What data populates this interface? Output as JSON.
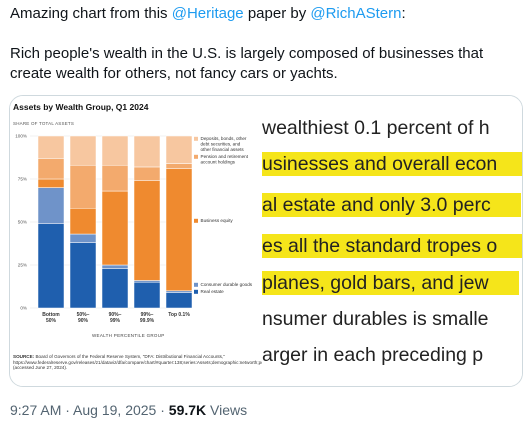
{
  "tweet": {
    "intro_prefix": "Amazing chart from this ",
    "mention_heritage": "@Heritage",
    "intro_middle": " paper by ",
    "mention_author": "@RichAStern",
    "intro_suffix": ":",
    "body": "Rich people's wealth in the U.S. is largely composed of businesses that create wealth for others, not fancy cars or yachts."
  },
  "media": {
    "zoom_lines": [
      " wealthiest 0.1 percent of h",
      "usinesses and overall econ",
      "al estate and only 3.0 perc",
      "es all the standard tropes o",
      "planes, gold bars, and jew",
      "nsumer durables is smalle",
      "arger in each preceding p"
    ]
  },
  "chart_data": {
    "type": "bar",
    "stacked": true,
    "title": "Assets by Wealth Group, Q1 2024",
    "ylabel": "SHARE OF TOTAL ASSETS",
    "xlabel": "WEALTH PERCENTILE GROUP",
    "y_ticks": [
      "0%",
      "25%",
      "50%",
      "75%",
      "100%"
    ],
    "ylim": [
      0,
      100
    ],
    "categories": [
      [
        "Bottom",
        "50%"
      ],
      [
        "50%–",
        "90%"
      ],
      [
        "90%–",
        "99%"
      ],
      [
        "99%–",
        "99.9%"
      ],
      [
        "Top 0.1%"
      ]
    ],
    "series": [
      {
        "name": "Real estate",
        "color": "#1f5fae",
        "values": [
          49,
          38,
          23,
          15,
          9
        ]
      },
      {
        "name": "Consumer durable goods",
        "color": "#6f93c9",
        "values": [
          21,
          5,
          2,
          1,
          1
        ]
      },
      {
        "name": "Business equity",
        "color": "#ef8a2f",
        "values": [
          5,
          15,
          43,
          58,
          71
        ]
      },
      {
        "name": "Pension and retirement account holdings",
        "color": "#f3aa6d",
        "values": [
          12,
          25,
          15,
          8,
          3
        ]
      },
      {
        "name": "Deposits, bonds, other debt securities, and other financial assets",
        "color": "#f7c7a0",
        "values": [
          13,
          17,
          17,
          18,
          16
        ]
      }
    ],
    "legend": [
      {
        "label": "Deposits, bonds, other debt securities, and other financial assets",
        "color": "#f7c7a0"
      },
      {
        "label": "Pension and retirement account holdings",
        "color": "#f3aa6d"
      },
      {
        "label": "Business equity",
        "color": "#ef8a2f"
      },
      {
        "label": "Consumer durable goods",
        "color": "#6f93c9"
      },
      {
        "label": "Real estate",
        "color": "#1f5fae"
      }
    ],
    "source_label": "SOURCE:",
    "source_text": "Board of Governors of the Federal Reserve System, \"DFA: Distributional Financial Accounts,\" https://www.federalreserve.gov/releases/z1/dataviz/dfa/compare/chart/#quarter:138;series:Assets;demographic:networth;population:1,3,5,7,9;units:shares;range:2009.1,2024.1 (accessed June 27, 2024)."
  },
  "footer": {
    "time": "9:27 AM",
    "sep1": " · ",
    "date": "Aug 19, 2025",
    "sep2": " · ",
    "views_count": "59.7K",
    "views_label": " Views"
  }
}
